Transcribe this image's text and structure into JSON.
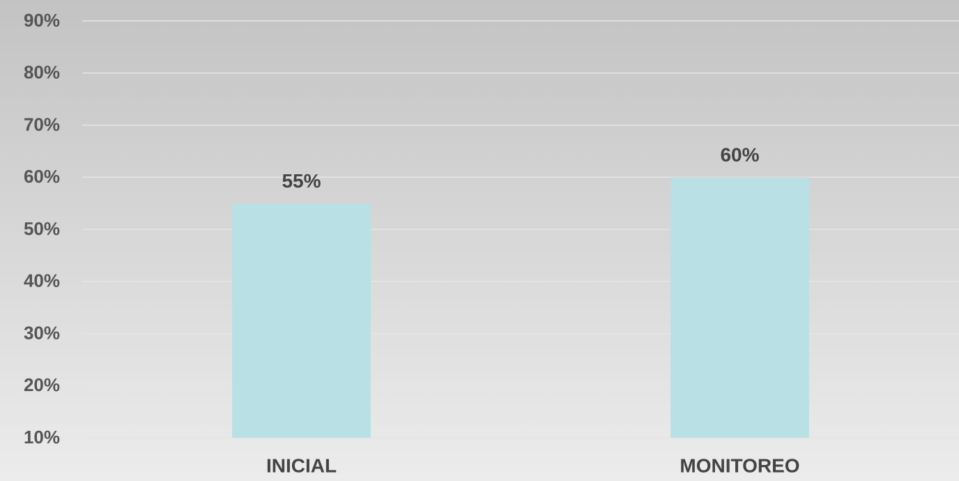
{
  "chart_data": {
    "type": "bar",
    "categories": [
      "INICIAL",
      "MONITOREO"
    ],
    "values": [
      55,
      60
    ],
    "value_labels": [
      "55%",
      "60%"
    ],
    "color": "#b9e0e4",
    "ylim": [
      10,
      90
    ],
    "yticks": [
      {
        "value": 10,
        "label": "10%"
      },
      {
        "value": 20,
        "label": "20%"
      },
      {
        "value": 30,
        "label": "30%"
      },
      {
        "value": 40,
        "label": "40%"
      },
      {
        "value": 50,
        "label": "50%"
      },
      {
        "value": 60,
        "label": "60%"
      },
      {
        "value": 70,
        "label": "70%"
      },
      {
        "value": 80,
        "label": "80%"
      },
      {
        "value": 90,
        "label": "90%"
      }
    ],
    "grid": true
  }
}
